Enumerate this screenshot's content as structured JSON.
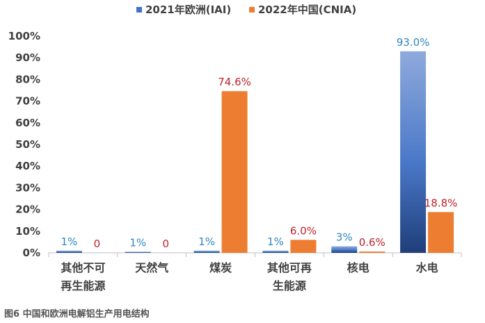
{
  "chart_data": {
    "type": "bar",
    "categories": [
      [
        "其他不可",
        "再生能源"
      ],
      [
        "天然气"
      ],
      [
        "煤炭"
      ],
      [
        "其他可再",
        "生能源"
      ],
      [
        "核电"
      ],
      [
        "水电"
      ]
    ],
    "series": [
      {
        "name": "2021年欧洲(IAI)",
        "values": [
          1,
          0.5,
          1,
          1,
          3,
          93.0
        ],
        "labels": [
          "1%",
          "1%",
          "1%",
          "1%",
          "3%",
          "93.0%"
        ],
        "color": "#4472c4",
        "label_color": "#2e86c1"
      },
      {
        "name": "2022年中国(CNIA)",
        "values": [
          0,
          0,
          74.6,
          6.0,
          0.6,
          18.8
        ],
        "labels": [
          "0",
          "0",
          "74.6%",
          "6.0%",
          "0.6%",
          "18.8%"
        ],
        "color": "#ed7d31",
        "label_color": "#c0202a"
      }
    ],
    "yticks": [
      "0%",
      "10%",
      "20%",
      "30%",
      "40%",
      "50%",
      "60%",
      "70%",
      "80%",
      "90%",
      "100%"
    ],
    "ylim": [
      0,
      100
    ],
    "legend_position": "top-center",
    "grid": false
  },
  "caption": "图6 中国和欧洲电解铝生产用电结构"
}
